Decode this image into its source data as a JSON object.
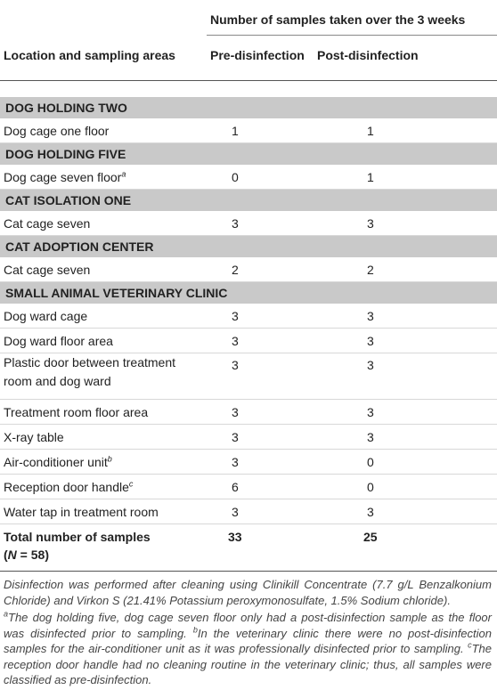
{
  "header": {
    "group_label": "Number of samples taken over the 3 weeks",
    "location_label": "Location and sampling areas",
    "pre_label": "Pre-disinfection",
    "post_label": "Post-disinfection"
  },
  "sections": [
    {
      "title": "DOG HOLDING TWO",
      "rows": [
        {
          "label": "Dog cage one floor",
          "sup": "",
          "pre": "1",
          "post": "1"
        }
      ]
    },
    {
      "title": "DOG HOLDING FIVE",
      "rows": [
        {
          "label": "Dog cage seven floor",
          "sup": "a",
          "pre": "0",
          "post": "1"
        }
      ]
    },
    {
      "title": "CAT ISOLATION ONE",
      "rows": [
        {
          "label": "Cat cage seven",
          "sup": "",
          "pre": "3",
          "post": "3"
        }
      ]
    },
    {
      "title": "CAT ADOPTION CENTER",
      "rows": [
        {
          "label": "Cat cage seven",
          "sup": "",
          "pre": "2",
          "post": "2"
        }
      ]
    },
    {
      "title": "SMALL ANIMAL VETERINARY CLINIC",
      "rows": [
        {
          "label": "Dog ward cage",
          "sup": "",
          "pre": "3",
          "post": "3"
        },
        {
          "label": "Dog ward floor area",
          "sup": "",
          "pre": "3",
          "post": "3"
        },
        {
          "label": "Plastic door between treatment room and dog ward",
          "sup": "",
          "pre": "3",
          "post": "3"
        },
        {
          "label": "Treatment room floor area",
          "sup": "",
          "pre": "3",
          "post": "3"
        },
        {
          "label": "X-ray table",
          "sup": "",
          "pre": "3",
          "post": "3"
        },
        {
          "label": "Air-conditioner unit",
          "sup": "b",
          "pre": "3",
          "post": "0"
        },
        {
          "label": "Reception door handle",
          "sup": "c",
          "pre": "6",
          "post": "0"
        },
        {
          "label": "Water tap in treatment room",
          "sup": "",
          "pre": "3",
          "post": "3"
        }
      ]
    }
  ],
  "total": {
    "label_line1": "Total number of samples",
    "label_n": "N",
    "label_rest": " = 58)",
    "pre": "33",
    "post": "25"
  },
  "notes": {
    "main": "Disinfection was performed after cleaning using Clinikill Concentrate (7.7 g/L Benzalkonium Chloride) and Virkon S (21.41% Potassium peroxymonosulfate, 1.5% Sodium chloride).",
    "a_mark": "a",
    "a_text": "The dog holding five, dog cage seven floor only had a post-disinfection sample as the floor was disinfected prior to sampling. ",
    "b_mark": "b",
    "b_text": "In the veterinary clinic there were no post-disinfection samples for the air-conditioner unit as it was professionally disinfected prior to sampling. ",
    "c_mark": "c",
    "c_text": "The reception door handle had no cleaning routine in the veterinary clinic; thus, all samples were classified as pre-disinfection."
  }
}
